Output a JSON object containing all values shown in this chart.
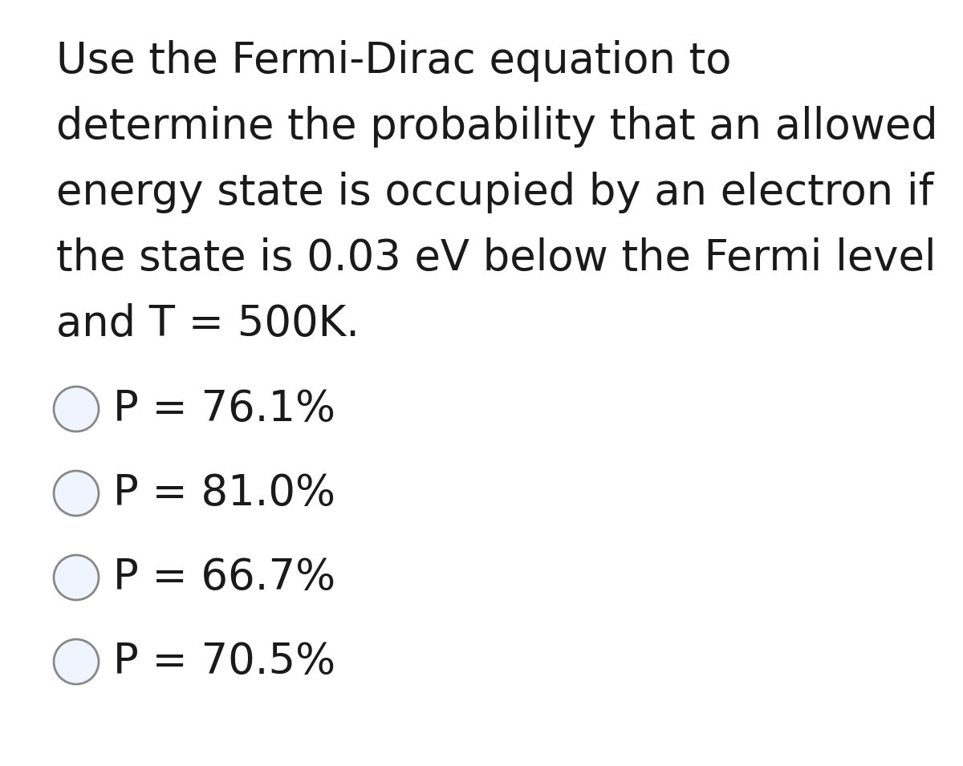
{
  "background_color": "#ffffff",
  "question_lines": [
    "Use the Fermi-Dirac equation to",
    "determine the probability that an allowed",
    "energy state is occupied by an electron if",
    "the state is 0.03 eV below the Fermi level",
    "and T = 500K."
  ],
  "options": [
    "P = 76.1%",
    "P = 81.0%",
    "P = 66.7%",
    "P = 70.5%"
  ],
  "text_color": "#1a1a1a",
  "circle_edge_color": "#888888",
  "circle_fill_color": "#f0f4ff",
  "question_fontsize": 38,
  "option_fontsize": 38,
  "fig_width": 12.0,
  "fig_height": 9.55,
  "dpi": 100
}
